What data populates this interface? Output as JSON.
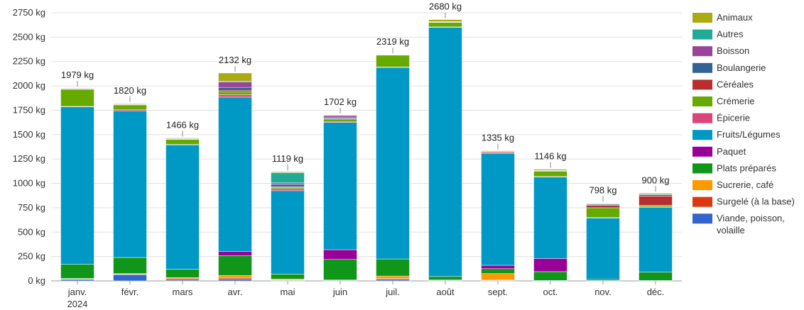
{
  "chart_data": {
    "type": "bar",
    "stacked": true,
    "unit": "kg",
    "ylim": [
      0,
      2750
    ],
    "yticks": [
      "0 kg",
      "250 kg",
      "500 kg",
      "750 kg",
      "1000 kg",
      "1250 kg",
      "1500 kg",
      "1750 kg",
      "2000 kg",
      "2250 kg",
      "2500 kg",
      "2750 kg"
    ],
    "ytick_values": [
      0,
      250,
      500,
      750,
      1000,
      1250,
      1500,
      1750,
      2000,
      2250,
      2500,
      2750
    ],
    "grid": true,
    "legend_position": "right",
    "categories": [
      "janv.",
      "févr.",
      "mars",
      "avr.",
      "mai",
      "juin",
      "juil.",
      "août",
      "sept.",
      "oct.",
      "nov.",
      "déc."
    ],
    "category_sublabels": [
      "2024",
      "",
      "",
      "",
      "",
      "",
      "",
      "",
      "",
      "",
      "",
      ""
    ],
    "totals": [
      "1979 kg",
      "1820 kg",
      "1466 kg",
      "2132 kg",
      "1119 kg",
      "1702 kg",
      "2319 kg",
      "2680 kg",
      "1335 kg",
      "1146 kg",
      "798 kg",
      "900 kg"
    ],
    "total_values": [
      1979,
      1820,
      1466,
      2132,
      1119,
      1702,
      2319,
      2680,
      1335,
      1146,
      798,
      900
    ],
    "legend_lines": [
      [
        "Animaux"
      ],
      [
        "Autres"
      ],
      [
        "Boisson"
      ],
      [
        "Boulangerie"
      ],
      [
        "Céréales"
      ],
      [
        "Crémerie"
      ],
      [
        "Épicerie"
      ],
      [
        "Fruits/Légumes"
      ],
      [
        "Paquet"
      ],
      [
        "Plats préparés"
      ],
      [
        "Sucrerie, café"
      ],
      [
        "Surgelé (à la base)"
      ],
      [
        "Viande, poisson,",
        "volaille"
      ]
    ],
    "series": [
      {
        "name": "Viande, poisson, volaille",
        "color": "#3366cc",
        "values": [
          15,
          65,
          10,
          20,
          5,
          5,
          15,
          5,
          5,
          5,
          5,
          5
        ]
      },
      {
        "name": "Surgelé (à la base)",
        "color": "#dc3912",
        "values": [
          5,
          5,
          15,
          10,
          5,
          5,
          10,
          0,
          5,
          0,
          0,
          0
        ]
      },
      {
        "name": "Sucrerie, café",
        "color": "#ff9900",
        "values": [
          5,
          5,
          10,
          25,
          10,
          0,
          25,
          5,
          65,
          0,
          0,
          0
        ]
      },
      {
        "name": "Plats préparés",
        "color": "#109618",
        "values": [
          145,
          165,
          85,
          205,
          50,
          210,
          175,
          35,
          50,
          90,
          15,
          85
        ]
      },
      {
        "name": "Paquet",
        "color": "#990099",
        "values": [
          0,
          0,
          0,
          40,
          0,
          100,
          0,
          0,
          35,
          135,
          0,
          0
        ]
      },
      {
        "name": "Fruits/Légumes",
        "color": "#0099c6",
        "values": [
          1615,
          1505,
          1275,
          1585,
          855,
          1305,
          1965,
          2555,
          1150,
          835,
          625,
          665
        ]
      },
      {
        "name": "Épicerie",
        "color": "#dd4477",
        "values": [
          5,
          10,
          5,
          25,
          20,
          10,
          5,
          5,
          5,
          5,
          5,
          5
        ]
      },
      {
        "name": "Crémerie",
        "color": "#66aa00",
        "values": [
          175,
          50,
          50,
          30,
          15,
          25,
          120,
          45,
          0,
          55,
          100,
          15
        ]
      },
      {
        "name": "Céréales",
        "color": "#b82e2e",
        "values": [
          5,
          5,
          5,
          15,
          5,
          5,
          0,
          5,
          10,
          5,
          25,
          95
        ]
      },
      {
        "name": "Boulangerie",
        "color": "#316395",
        "values": [
          5,
          5,
          5,
          30,
          25,
          10,
          0,
          5,
          5,
          0,
          10,
          15
        ]
      },
      {
        "name": "Boisson",
        "color": "#994499",
        "values": [
          0,
          0,
          0,
          55,
          15,
          20,
          0,
          0,
          0,
          0,
          5,
          0
        ]
      },
      {
        "name": "Autres",
        "color": "#22aa99",
        "values": [
          0,
          0,
          0,
          10,
          105,
          0,
          0,
          0,
          0,
          5,
          5,
          5
        ]
      },
      {
        "name": "Animaux",
        "color": "#aaaa11",
        "values": [
          4,
          5,
          6,
          82,
          9,
          7,
          4,
          20,
          5,
          11,
          3,
          10
        ]
      }
    ]
  }
}
